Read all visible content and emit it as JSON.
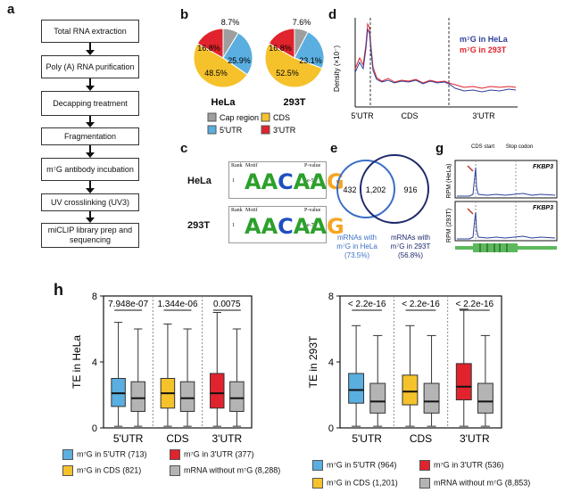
{
  "panel_labels": {
    "a": "a",
    "b": "b",
    "c": "c",
    "d": "d",
    "e": "e",
    "g": "g",
    "h": "h"
  },
  "workflow": [
    "Total RNA extraction",
    "Poly (A) RNA purification",
    "Decapping treatment",
    "Fragmentation",
    "m⁷G antibody incubation",
    "UV crosslinking (UV3)",
    "miCLIP library prep and sequencing"
  ],
  "colors": {
    "cap": "#9e9e9e",
    "utr5": "#5aaee0",
    "cds": "#f5c22c",
    "utr3": "#e0232d",
    "nom7g": "#b4b4b4",
    "hela_line": "#2f3f9a",
    "t293_line": "#e0232d",
    "venn_hela": "#3b6fc6",
    "venn_293": "#1d2a6b"
  },
  "pies": [
    {
      "name": "HeLa",
      "labels": [
        "8.7%",
        "25.9%",
        "48.5%",
        "16.8%"
      ]
    },
    {
      "name": "293T",
      "labels": [
        "7.6%",
        "23.1%",
        "52.5%",
        "16.8%"
      ]
    }
  ],
  "pie_legend": {
    "cap": "Cap region",
    "cds": "CDS",
    "utr5": "5'UTR",
    "utr3": "3'UTR"
  },
  "motifs": {
    "header": {
      "rank": "Rank",
      "motif": "Motif",
      "pvalue": "P-value"
    },
    "rows": [
      {
        "cell": "HeLa",
        "rank": "1",
        "seq": "AACAAG",
        "pvalue": "1e-50"
      },
      {
        "cell": "293T",
        "rank": "1",
        "seq": "AACAAG",
        "pvalue": "1e-73"
      }
    ]
  },
  "density": {
    "ylabel": "Density (×10⁻)",
    "regions": [
      "5'UTR",
      "CDS",
      "3'UTR"
    ],
    "legend": [
      "m⁷G in HeLa",
      "m⁷G in 293T"
    ]
  },
  "venn": {
    "left": "432",
    "both": "1,202",
    "right": "916",
    "label_left": "mRNAs with m⁷G in HeLa (73.5%)",
    "label_right": "mRNAs with m⁷G in 293T (56.8%)"
  },
  "tracks": {
    "cds_start": "CDS start",
    "stop_codon": "Stop codon",
    "gene": "FKBP3",
    "ylabel_top": "RPM (HeLa)",
    "ylabel_bottom": "RPM (293T)"
  },
  "chart_data": [
    {
      "type": "box",
      "title": "",
      "ylabel": "TE in HeLa",
      "ylim": [
        0,
        8
      ],
      "yticks": [
        "0",
        "4",
        "8"
      ],
      "categories": [
        "5'UTR",
        "CDS",
        "3'UTR"
      ],
      "pvalues": [
        "7.948e-07",
        "1.344e-06",
        "0.0075"
      ],
      "series": [
        {
          "group": "5'UTR",
          "name": "m⁷G in 5'UTR",
          "stats": [
            0.1,
            1.3,
            2.1,
            3.0,
            6.4
          ],
          "color": "#5aaee0"
        },
        {
          "group": "5'UTR",
          "name": "mRNA without m⁷G",
          "stats": [
            0.1,
            1.0,
            1.8,
            2.8,
            6.0
          ],
          "color": "#b4b4b4"
        },
        {
          "group": "CDS",
          "name": "m⁷G in CDS",
          "stats": [
            0.1,
            1.2,
            2.1,
            3.0,
            6.3
          ],
          "color": "#f5c22c"
        },
        {
          "group": "CDS",
          "name": "mRNA without m⁷G",
          "stats": [
            0.1,
            1.0,
            1.8,
            2.8,
            6.0
          ],
          "color": "#b4b4b4"
        },
        {
          "group": "3'UTR",
          "name": "m⁷G in 3'UTR",
          "stats": [
            0.1,
            1.2,
            2.1,
            3.3,
            7.0
          ],
          "color": "#e0232d"
        },
        {
          "group": "3'UTR",
          "name": "mRNA without m⁷G",
          "stats": [
            0.1,
            1.0,
            1.8,
            2.8,
            6.0
          ],
          "color": "#b4b4b4"
        }
      ],
      "legend": [
        "m⁷G in 5'UTR (713)",
        "m⁷G in 3'UTR (377)",
        "m⁷G in CDS (821)",
        "mRNA without m⁷G (8,288)"
      ]
    },
    {
      "type": "box",
      "title": "",
      "ylabel": "TE in 293T",
      "ylim": [
        0,
        8
      ],
      "yticks": [
        "0",
        "4",
        "8"
      ],
      "categories": [
        "5'UTR",
        "CDS",
        "3'UTR"
      ],
      "pvalues": [
        "< 2.2e-16",
        "< 2.2e-16",
        "< 2.2e-16"
      ],
      "series": [
        {
          "group": "5'UTR",
          "name": "m⁷G in 5'UTR",
          "stats": [
            0.1,
            1.5,
            2.3,
            3.3,
            6.2
          ],
          "color": "#5aaee0"
        },
        {
          "group": "5'UTR",
          "name": "mRNA without m⁷G",
          "stats": [
            0.1,
            0.9,
            1.6,
            2.7,
            5.6
          ],
          "color": "#b4b4b4"
        },
        {
          "group": "CDS",
          "name": "m⁷G in CDS",
          "stats": [
            0.1,
            1.4,
            2.2,
            3.2,
            6.2
          ],
          "color": "#f5c22c"
        },
        {
          "group": "CDS",
          "name": "mRNA without m⁷G",
          "stats": [
            0.1,
            0.9,
            1.6,
            2.7,
            5.6
          ],
          "color": "#b4b4b4"
        },
        {
          "group": "3'UTR",
          "name": "m⁷G in 3'UTR",
          "stats": [
            0.1,
            1.7,
            2.5,
            3.9,
            7.2
          ],
          "color": "#e0232d"
        },
        {
          "group": "3'UTR",
          "name": "mRNA without m⁷G",
          "stats": [
            0.1,
            0.9,
            1.6,
            2.7,
            5.6
          ],
          "color": "#b4b4b4"
        }
      ],
      "legend": [
        "m⁷G in 5'UTR (964)",
        "m⁷G in 3'UTR (536)",
        "m⁷G in CDS (1,201)",
        "mRNA without m⁷G (8,853)"
      ]
    }
  ]
}
